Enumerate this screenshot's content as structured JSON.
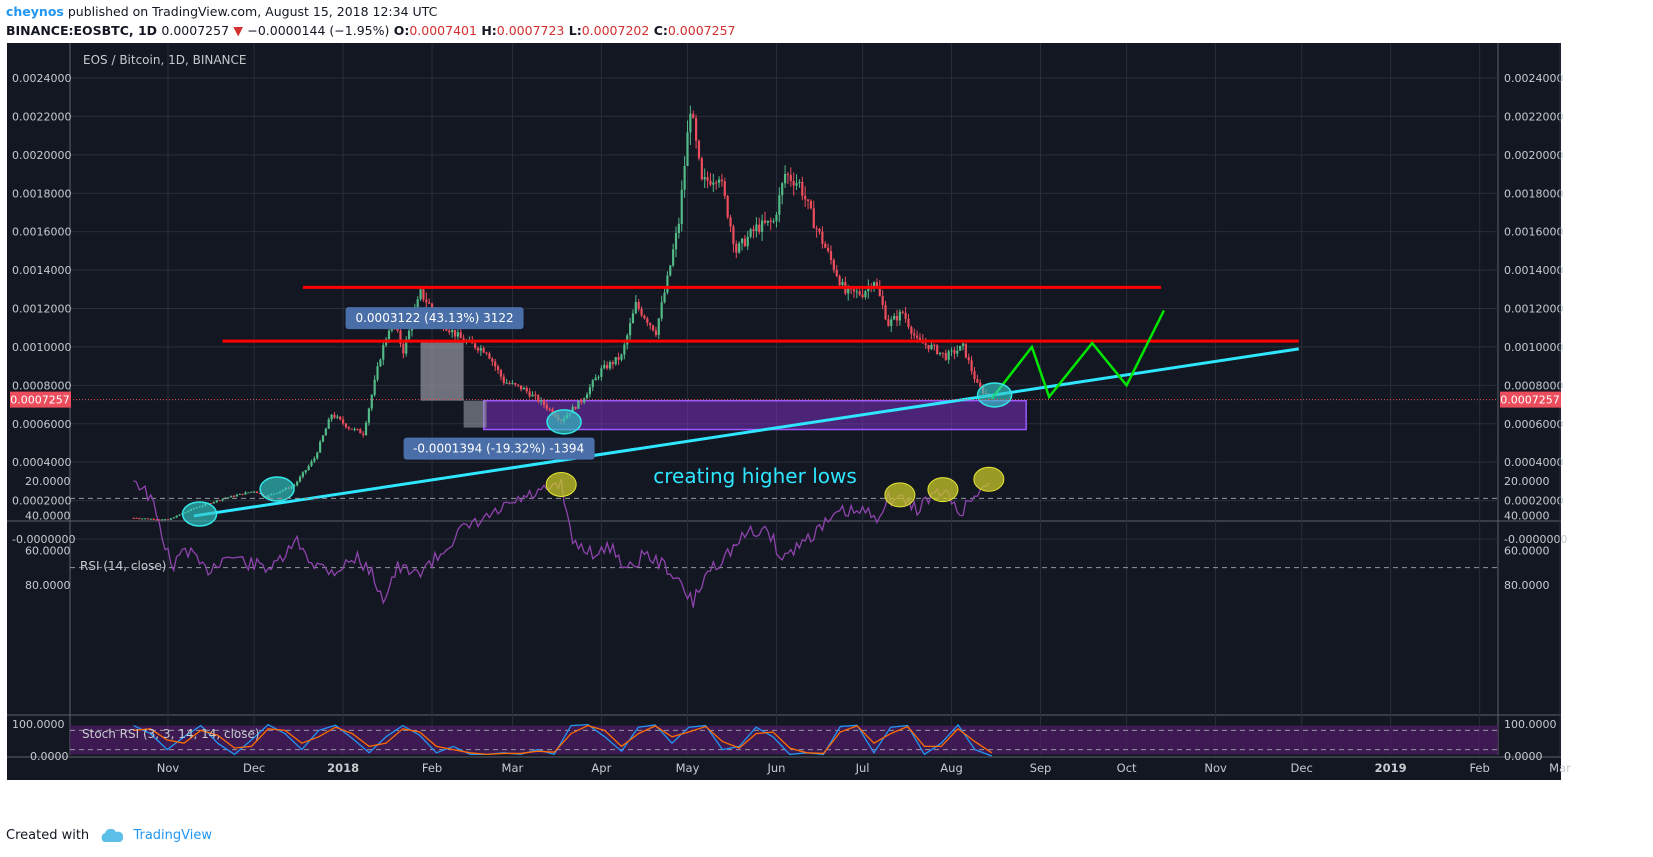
{
  "header": {
    "author": "cheynos",
    "published": "published on TradingView.com, August 15, 2018 12:34 UTC",
    "symbol": "BINANCE:EOSBTC, 1D",
    "price": "0.0007257",
    "change_arrow": "▼",
    "change": "−0.0000144 (−1.95%)",
    "o_label": "O:",
    "o_value": "0.0007401",
    "h_label": "H:",
    "h_value": "0.0007723",
    "l_label": "L:",
    "l_value": "0.0007202",
    "c_label": "C:",
    "c_value": "0.0007257"
  },
  "footer": {
    "created_with": "Created with",
    "brand": "TradingView"
  },
  "colors": {
    "background": "#131722",
    "grid": "#2a2e39",
    "up": "#53b987",
    "down": "#eb4d5c",
    "resistance": "#ff0000",
    "trendline": "#2ee6ff",
    "projection": "#00e600",
    "rsi": "#8e44ad",
    "rsi_band": "#4a1b5f",
    "stoch_k": "#2196f3",
    "stoch_d": "#ff6d00",
    "demand_zone": "#7b2fbe",
    "rsi_circle": "#c8c829",
    "price_circle": "#33c8c8"
  },
  "chart_data": [
    {
      "type": "candlestick",
      "title": "EOS / Bitcoin, 1D, BINANCE",
      "x_ticks": [
        "Nov",
        "Dec",
        "2018",
        "Feb",
        "Mar",
        "Apr",
        "May",
        "Jun",
        "Jul",
        "Aug",
        "Sep",
        "Oct",
        "Nov",
        "Dec",
        "2019",
        "Feb",
        "Mar"
      ],
      "y_ticks": [
        "0.0024000",
        "0.0022000",
        "0.0020000",
        "0.0018000",
        "0.0016000",
        "0.0014000",
        "0.0012000",
        "0.0010000",
        "0.0008000",
        "0.0006000",
        "0.0004000",
        "0.0002000",
        "-0.0000000"
      ],
      "ylim": [
        -1e-05,
        0.00245
      ],
      "last_price": "0.0007257",
      "price_path": [
        [
          "2017-10-20",
          0.00011
        ],
        [
          "2017-11-01",
          0.0001
        ],
        [
          "2017-11-10",
          0.00016
        ],
        [
          "2017-11-20",
          0.00021
        ],
        [
          "2017-12-01",
          0.00025
        ],
        [
          "2017-12-05",
          0.00022
        ],
        [
          "2017-12-15",
          0.00028
        ],
        [
          "2017-12-22",
          0.00042
        ],
        [
          "2017-12-28",
          0.00065
        ],
        [
          "2018-01-03",
          0.00058
        ],
        [
          "2018-01-08",
          0.00055
        ],
        [
          "2018-01-14",
          0.00095
        ],
        [
          "2018-01-18",
          0.00115
        ],
        [
          "2018-01-22",
          0.00098
        ],
        [
          "2018-01-28",
          0.00128
        ],
        [
          "2018-02-05",
          0.00112
        ],
        [
          "2018-02-12",
          0.00103
        ],
        [
          "2018-02-20",
          0.00098
        ],
        [
          "2018-02-26",
          0.00082
        ],
        [
          "2018-03-05",
          0.00078
        ],
        [
          "2018-03-12",
          0.0007
        ],
        [
          "2018-03-18",
          0.00062
        ],
        [
          "2018-03-25",
          0.00072
        ],
        [
          "2018-04-01",
          0.00088
        ],
        [
          "2018-04-08",
          0.00095
        ],
        [
          "2018-04-13",
          0.00122
        ],
        [
          "2018-04-20",
          0.00108
        ],
        [
          "2018-04-24",
          0.00135
        ],
        [
          "2018-04-28",
          0.00165
        ],
        [
          "2018-05-02",
          0.00225
        ],
        [
          "2018-05-06",
          0.00185
        ],
        [
          "2018-05-12",
          0.0019
        ],
        [
          "2018-05-18",
          0.0015
        ],
        [
          "2018-05-25",
          0.00162
        ],
        [
          "2018-05-31",
          0.00165
        ],
        [
          "2018-06-04",
          0.0019
        ],
        [
          "2018-06-09",
          0.00185
        ],
        [
          "2018-06-14",
          0.00165
        ],
        [
          "2018-06-20",
          0.00145
        ],
        [
          "2018-06-25",
          0.00128
        ],
        [
          "2018-07-01",
          0.00128
        ],
        [
          "2018-07-05",
          0.00135
        ],
        [
          "2018-07-10",
          0.00112
        ],
        [
          "2018-07-15",
          0.00118
        ],
        [
          "2018-07-20",
          0.00103
        ],
        [
          "2018-07-25",
          0.001
        ],
        [
          "2018-07-30",
          0.00095
        ],
        [
          "2018-08-05",
          0.001
        ],
        [
          "2018-08-10",
          0.0008
        ],
        [
          "2018-08-15",
          0.0007257
        ]
      ],
      "resistance_levels": [
        {
          "price": 0.00131,
          "from": "2017-12-18",
          "to": "2018-10-13"
        },
        {
          "price": 0.00103,
          "from": "2017-11-20",
          "to": "2018-11-30"
        }
      ],
      "trendline": [
        [
          "2017-11-10",
          0.00012
        ],
        [
          "2018-11-30",
          0.00099
        ]
      ],
      "projection": [
        [
          "2018-08-15",
          0.00073
        ],
        [
          "2018-08-29",
          0.001
        ],
        [
          "2018-09-04",
          0.00074
        ],
        [
          "2018-09-19",
          0.00102
        ],
        [
          "2018-10-01",
          0.0008
        ],
        [
          "2018-10-14",
          0.00119
        ]
      ],
      "demand_zone": {
        "from": "2018-02-19",
        "to": "2018-08-27",
        "top": 0.00072,
        "bottom": 0.00057
      },
      "measure_up": {
        "label": "0.0003122 (43.13%) 3122",
        "from": "2018-01-28",
        "to": "2018-02-12",
        "low": 0.00072,
        "high": 0.00103
      },
      "measure_down": {
        "label": "-0.0001394 (-19.32%) -1394",
        "from": "2018-02-12",
        "to": "2018-02-20",
        "high": 0.00072,
        "low": 0.00058
      },
      "annotation": "creating higher lows",
      "circles": [
        [
          "2017-11-12",
          0.00013
        ],
        [
          "2017-12-09",
          0.00026
        ],
        [
          "2018-03-19",
          0.00061
        ],
        [
          "2018-08-16",
          0.00075
        ]
      ]
    },
    {
      "type": "line",
      "title": "RSI (14, close)",
      "y_ticks": [
        "80.0000",
        "60.0000",
        "40.0000",
        "20.0000"
      ],
      "ylim": [
        10,
        93
      ],
      "bands": [
        30,
        70
      ],
      "values_path": [
        [
          "2017-10-20",
          18
        ],
        [
          "2017-10-26",
          30
        ],
        [
          "2017-11-01",
          62
        ],
        [
          "2017-11-03",
          70
        ],
        [
          "2017-11-07",
          58
        ],
        [
          "2017-11-14",
          72
        ],
        [
          "2017-11-22",
          63
        ],
        [
          "2017-11-30",
          68
        ],
        [
          "2017-12-08",
          70
        ],
        [
          "2017-12-16",
          55
        ],
        [
          "2017-12-22",
          68
        ],
        [
          "2017-12-29",
          72
        ],
        [
          "2018-01-06",
          64
        ],
        [
          "2018-01-12",
          76
        ],
        [
          "2018-01-15",
          88
        ],
        [
          "2018-01-20",
          70
        ],
        [
          "2018-01-26",
          74
        ],
        [
          "2018-02-03",
          64
        ],
        [
          "2018-02-10",
          50
        ],
        [
          "2018-02-16",
          45
        ],
        [
          "2018-02-24",
          38
        ],
        [
          "2018-03-02",
          32
        ],
        [
          "2018-03-10",
          27
        ],
        [
          "2018-03-17",
          24
        ],
        [
          "2018-03-18",
          20
        ],
        [
          "2018-03-20",
          42
        ],
        [
          "2018-03-22",
          55
        ],
        [
          "2018-03-30",
          62
        ],
        [
          "2018-04-05",
          58
        ],
        [
          "2018-04-10",
          72
        ],
        [
          "2018-04-16",
          62
        ],
        [
          "2018-04-24",
          70
        ],
        [
          "2018-05-01",
          86
        ],
        [
          "2018-05-03",
          90
        ],
        [
          "2018-05-08",
          72
        ],
        [
          "2018-05-15",
          62
        ],
        [
          "2018-05-22",
          50
        ],
        [
          "2018-05-29",
          48
        ],
        [
          "2018-06-03",
          65
        ],
        [
          "2018-06-10",
          55
        ],
        [
          "2018-06-18",
          45
        ],
        [
          "2018-06-24",
          38
        ],
        [
          "2018-07-01",
          38
        ],
        [
          "2018-07-06",
          40
        ],
        [
          "2018-07-10",
          30
        ],
        [
          "2018-07-14",
          30
        ],
        [
          "2018-07-20",
          36
        ],
        [
          "2018-07-24",
          30
        ],
        [
          "2018-07-29",
          26
        ],
        [
          "2018-08-04",
          38
        ],
        [
          "2018-08-07",
          33
        ],
        [
          "2018-08-11",
          24
        ],
        [
          "2018-08-15",
          20
        ]
      ],
      "circles": [
        [
          "2018-03-18",
          22
        ],
        [
          "2018-07-14",
          28
        ],
        [
          "2018-07-29",
          25
        ],
        [
          "2018-08-14",
          19
        ]
      ]
    },
    {
      "type": "line",
      "title": "Stoch RSI (3, 3, 14, 14, close)",
      "y_ticks": [
        "100.0000",
        "0.0000"
      ],
      "ylim": [
        -5,
        105
      ],
      "series": [
        {
          "key": "k",
          "values": [
            95,
            70,
            20,
            60,
            95,
            40,
            5,
            50,
            98,
            70,
            20,
            80,
            96,
            55,
            10,
            60,
            95,
            65,
            10,
            30,
            5,
            5,
            10,
            5,
            20,
            5,
            95,
            98,
            60,
            15,
            90,
            97,
            40,
            90,
            95,
            20,
            30,
            90,
            60,
            5,
            10,
            5,
            92,
            96,
            10,
            90,
            95,
            5,
            40,
            97,
            20,
            0
          ]
        },
        {
          "key": "d",
          "values": [
            80,
            85,
            50,
            40,
            80,
            65,
            25,
            30,
            85,
            80,
            40,
            60,
            90,
            70,
            30,
            40,
            85,
            75,
            30,
            20,
            10,
            5,
            8,
            8,
            15,
            12,
            70,
            95,
            80,
            30,
            70,
            94,
            60,
            75,
            92,
            45,
            25,
            70,
            75,
            25,
            10,
            8,
            75,
            94,
            40,
            70,
            92,
            30,
            30,
            85,
            45,
            10
          ]
        }
      ],
      "x_range": [
        "2017-10-20",
        "2018-08-15"
      ]
    }
  ]
}
